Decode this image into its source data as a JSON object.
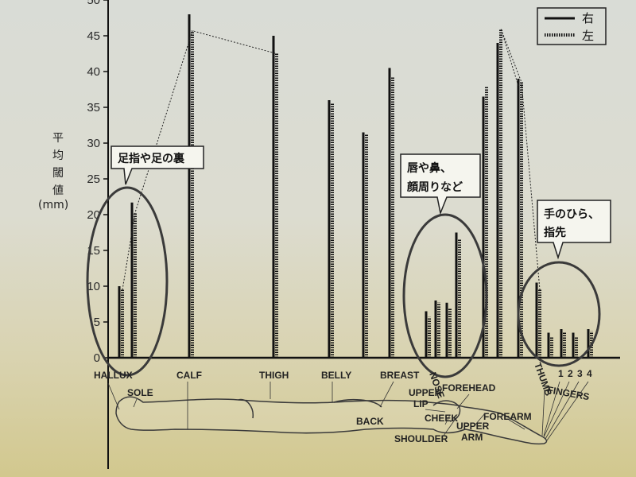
{
  "chart_data": {
    "type": "bar",
    "ylim": [
      0,
      50
    ],
    "yticks": [
      0,
      5,
      10,
      15,
      20,
      25,
      30,
      35,
      40,
      45,
      50
    ],
    "ylabel_lines": [
      "平",
      "均",
      "閾",
      "値",
      "(mm)"
    ],
    "categories": [
      "HALLUX",
      "SOLE",
      "CALF",
      "THIGH",
      "BELLY",
      "BREAST",
      "BACK",
      "UPPER LIP",
      "NOSE",
      "CHEEK",
      "FOREHEAD",
      "SHOULDER",
      "UPPER ARM",
      "FOREARM",
      "THUMB",
      "FINGER 1",
      "FINGER 2",
      "FINGER 3",
      "FINGER 4"
    ],
    "series": [
      {
        "name": "右",
        "style": "solid",
        "values": [
          10,
          21.7,
          48,
          45,
          36,
          40.5,
          31.5,
          6.5,
          8,
          7.7,
          17.5,
          36.5,
          44,
          39,
          10.5,
          3.5,
          4,
          3.5,
          4
        ]
      },
      {
        "name": "左",
        "style": "dashed",
        "values": [
          9.5,
          20.3,
          45.7,
          42.5,
          35.5,
          39.2,
          31.3,
          5.7,
          7.7,
          7,
          16.5,
          38,
          46,
          38.5,
          9.5,
          3,
          3.5,
          3,
          3.7
        ]
      }
    ],
    "tick_labels": {
      "HALLUX": "HALLUX",
      "SOLE": "SOLE",
      "CALF": "CALF",
      "THIGH": "THIGH",
      "BELLY": "BELLY",
      "BREAST": "BREAST",
      "BACK": "BACK",
      "UPPER_LIP_1": "UPPER",
      "UPPER_LIP_2": "LIP",
      "NOSE": "NOSE",
      "CHEEK": "CHEEK",
      "FOREHEAD": "FOREHEAD",
      "SHOULDER": "SHOULDER",
      "UPPER_ARM_1": "UPPER",
      "UPPER_ARM_2": "ARM",
      "FOREARM": "FOREARM",
      "THUMB": "THUMB",
      "FINGERS": "FINGERS",
      "F1": "1",
      "F2": "2",
      "F3": "3",
      "F4": "4"
    },
    "annotations": [
      {
        "id": "feet",
        "text": "足指や足の裏"
      },
      {
        "id": "face_1",
        "text": "唇や鼻、"
      },
      {
        "id": "face_2",
        "text": "顔周りなど"
      },
      {
        "id": "hand_1",
        "text": "手のひら、"
      },
      {
        "id": "hand_2",
        "text": "指先"
      }
    ]
  }
}
